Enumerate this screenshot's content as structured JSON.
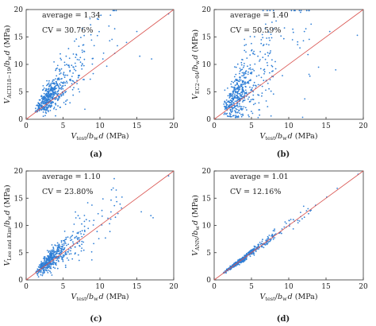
{
  "chart_data": [
    {
      "type": "scatter",
      "panel_label": "(a)",
      "stats": {
        "average": "average = 1.34",
        "cv": "CV = 30.76%"
      },
      "xlabel": "V_test/b_w d (MPa)",
      "ylabel": "V_ACI318−19/b_w d (MPa)",
      "xlim": [
        0,
        20
      ],
      "ylim": [
        0,
        20
      ],
      "xticks": [
        0,
        5,
        10,
        15,
        20
      ],
      "yticks": [
        0,
        5,
        10,
        15,
        20
      ],
      "reference_line": {
        "from": [
          0,
          0
        ],
        "to": [
          20,
          20
        ],
        "color": "#d9534f"
      },
      "marker_color": "#2f7fd6",
      "series": [
        {
          "x": [],
          "y": []
        }
      ]
    },
    {
      "type": "scatter",
      "panel_label": "(b)",
      "stats": {
        "average": "average = 1.40",
        "cv": "CV = 50.59%"
      },
      "xlabel": "V_test/b_w d (MPa)",
      "ylabel": "V_EC2−04/b_w d (MPa)",
      "xlim": [
        0,
        20
      ],
      "ylim": [
        0,
        20
      ],
      "xticks": [
        0,
        5,
        10,
        15,
        20
      ],
      "yticks": [
        0,
        5,
        10,
        15,
        20
      ],
      "reference_line": {
        "from": [
          0,
          0
        ],
        "to": [
          20,
          20
        ],
        "color": "#d9534f"
      },
      "marker_color": "#2f7fd6",
      "series": [
        {
          "x": [],
          "y": []
        }
      ]
    },
    {
      "type": "scatter",
      "panel_label": "(c)",
      "stats": {
        "average": "average = 1.10",
        "cv": "CV = 23.80%"
      },
      "xlabel": "V_test/b_w d (MPa)",
      "ylabel": "V_Lee and Kim/b_w d (MPa)",
      "xlim": [
        0,
        20
      ],
      "ylim": [
        0,
        20
      ],
      "xticks": [
        0,
        5,
        10,
        15,
        20
      ],
      "yticks": [
        0,
        5,
        10,
        15,
        20
      ],
      "reference_line": {
        "from": [
          0,
          0
        ],
        "to": [
          20,
          20
        ],
        "color": "#d9534f"
      },
      "marker_color": "#2f7fd6",
      "series": [
        {
          "x": [],
          "y": []
        }
      ]
    },
    {
      "type": "scatter",
      "panel_label": "(d)",
      "stats": {
        "average": "average = 1.01",
        "cv": "CV = 12.16%"
      },
      "xlabel": "V_test/b_w d (MPa)",
      "ylabel": "V_ANN/b_w d (MPa)",
      "xlim": [
        0,
        20
      ],
      "ylim": [
        0,
        20
      ],
      "xticks": [
        0,
        5,
        10,
        15,
        20
      ],
      "yticks": [
        0,
        5,
        10,
        15,
        20
      ],
      "reference_line": {
        "from": [
          0,
          0
        ],
        "to": [
          20,
          20
        ],
        "color": "#d9534f"
      },
      "marker_color": "#2f7fd6",
      "series": [
        {
          "x": [],
          "y": []
        }
      ]
    }
  ]
}
